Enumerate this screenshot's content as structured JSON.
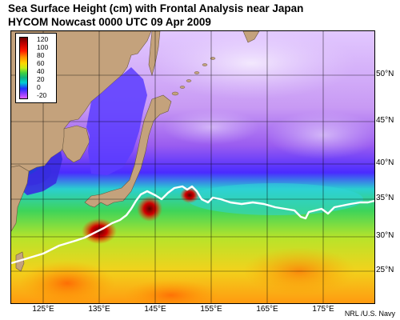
{
  "title": {
    "line1": "Sea Surface Height (cm) with Frontal Analysis near Japan",
    "line2": "HYCOM Nowcast 0000 UTC 09 Apr 2009"
  },
  "legend": {
    "ticks": [
      "120",
      "100",
      "80",
      "60",
      "40",
      "20",
      "0",
      "-20"
    ],
    "colors": [
      "#6a0000",
      "#ff1a00",
      "#ff8c00",
      "#ffd500",
      "#40d040",
      "#00d0d0",
      "#2030ff",
      "#e060ff"
    ]
  },
  "lat_labels": [
    "50°N",
    "45°N",
    "40°N",
    "35°N",
    "30°N",
    "25°N"
  ],
  "lon_labels": [
    "125°E",
    "135°E",
    "145°E",
    "155°E",
    "165°E",
    "175°E"
  ],
  "credit": "NRL /U.S. Navy",
  "colors": {
    "land": "#c4a27c",
    "front_line": "#ffffff",
    "grid": "#000000"
  }
}
